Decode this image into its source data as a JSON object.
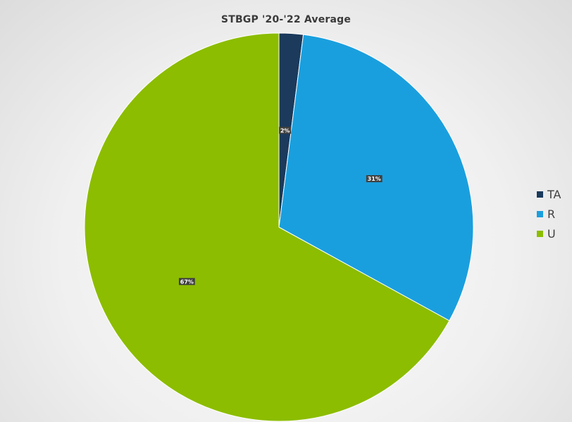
{
  "chart_data": {
    "type": "pie",
    "title": "STBGP '20-'22 Average",
    "categories": [
      "TA",
      "R",
      "U"
    ],
    "values": [
      2,
      31,
      67
    ],
    "data_labels": [
      "2%",
      "31%",
      "67%"
    ],
    "colors": [
      "#1b3a5c",
      "#1a9fde",
      "#8cbd00"
    ],
    "legend": "right"
  }
}
